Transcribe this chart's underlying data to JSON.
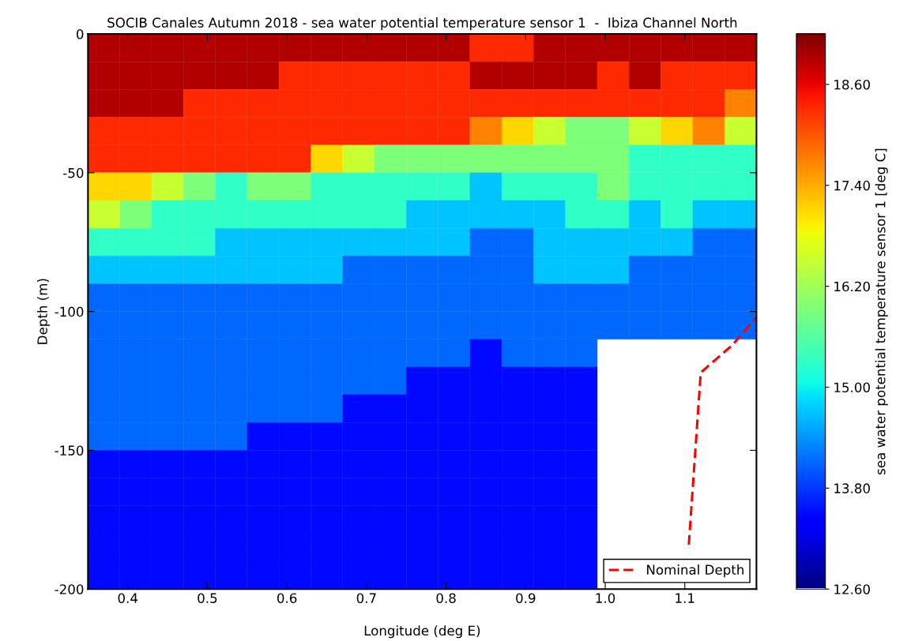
{
  "chart_data": {
    "type": "heatmap",
    "title": "SOCIB Canales Autumn 2018 - sea water potential temperature sensor 1  -  Ibiza Channel North",
    "xlabel": "Longitude (deg E)",
    "ylabel": "Depth (m)",
    "clabel": "sea water potential temperature sensor 1 [deg C]",
    "x": [
      0.37,
      0.41,
      0.45,
      0.49,
      0.53,
      0.57,
      0.61,
      0.65,
      0.69,
      0.73,
      0.77,
      0.81,
      0.85,
      0.89,
      0.93,
      0.97,
      1.01,
      1.05,
      1.09,
      1.13,
      1.17
    ],
    "cells": [
      [
        18.9,
        18.9,
        18.9,
        18.9,
        18.9,
        18.9,
        18.9,
        18.9,
        18.9,
        18.9,
        18.9,
        18.9,
        18.3,
        18.3,
        18.9,
        18.9,
        18.9,
        18.9,
        18.9,
        18.9,
        18.9
      ],
      [
        18.9,
        18.9,
        18.9,
        18.9,
        18.9,
        18.9,
        18.3,
        18.3,
        18.3,
        18.3,
        18.3,
        18.3,
        18.9,
        18.9,
        18.9,
        18.9,
        18.3,
        18.9,
        18.3,
        18.3,
        18.3
      ],
      [
        18.9,
        18.9,
        18.9,
        18.3,
        18.3,
        18.3,
        18.3,
        18.3,
        18.3,
        18.3,
        18.3,
        18.3,
        18.3,
        18.3,
        18.3,
        18.3,
        18.3,
        18.3,
        18.3,
        18.3,
        17.7
      ],
      [
        18.3,
        18.3,
        18.3,
        18.3,
        18.3,
        18.3,
        18.3,
        18.3,
        18.3,
        18.3,
        18.3,
        18.3,
        17.7,
        17.1,
        16.5,
        15.9,
        15.9,
        16.5,
        17.1,
        17.7,
        16.5
      ],
      [
        18.3,
        18.3,
        18.3,
        18.3,
        18.3,
        18.3,
        18.3,
        17.1,
        16.5,
        15.9,
        15.9,
        15.9,
        15.9,
        15.9,
        15.9,
        15.9,
        15.9,
        15.3,
        15.3,
        15.3,
        15.3
      ],
      [
        17.1,
        17.1,
        16.5,
        15.9,
        15.3,
        15.9,
        15.9,
        15.3,
        15.3,
        15.3,
        15.3,
        15.3,
        14.7,
        15.3,
        15.3,
        15.3,
        15.9,
        15.3,
        15.3,
        15.3,
        15.3
      ],
      [
        16.5,
        15.9,
        15.3,
        15.3,
        15.3,
        15.3,
        15.3,
        15.3,
        15.3,
        15.3,
        14.7,
        14.7,
        14.7,
        14.7,
        14.7,
        15.3,
        15.3,
        14.7,
        15.3,
        14.7,
        14.7
      ],
      [
        15.3,
        15.3,
        15.3,
        15.3,
        14.7,
        14.7,
        14.7,
        14.7,
        14.7,
        14.7,
        14.7,
        14.7,
        14.1,
        14.1,
        14.7,
        14.7,
        14.7,
        14.7,
        14.7,
        14.1,
        14.1
      ],
      [
        14.7,
        14.7,
        14.7,
        14.7,
        14.7,
        14.7,
        14.7,
        14.7,
        14.1,
        14.1,
        14.1,
        14.1,
        14.1,
        14.1,
        14.7,
        14.7,
        14.7,
        14.1,
        14.1,
        14.1,
        14.1
      ],
      [
        14.1,
        14.1,
        14.1,
        14.1,
        14.1,
        14.1,
        14.1,
        14.1,
        14.1,
        14.1,
        14.1,
        14.1,
        14.1,
        14.1,
        14.1,
        14.1,
        14.1,
        14.1,
        14.1,
        14.1,
        14.1
      ],
      [
        14.1,
        14.1,
        14.1,
        14.1,
        14.1,
        14.1,
        14.1,
        14.1,
        14.1,
        14.1,
        14.1,
        14.1,
        14.1,
        14.1,
        14.1,
        14.1,
        14.1,
        14.1,
        14.1,
        14.1,
        14.1
      ],
      [
        14.1,
        14.1,
        14.1,
        14.1,
        14.1,
        14.1,
        14.1,
        14.1,
        14.1,
        14.1,
        14.1,
        14.1,
        13.5,
        14.1,
        14.1,
        14.1,
        null,
        null,
        null,
        null,
        null
      ],
      [
        14.1,
        14.1,
        14.1,
        14.1,
        14.1,
        14.1,
        14.1,
        14.1,
        14.1,
        14.1,
        13.5,
        13.5,
        13.5,
        13.5,
        13.5,
        13.5,
        null,
        null,
        null,
        null,
        null
      ],
      [
        14.1,
        14.1,
        14.1,
        14.1,
        14.1,
        14.1,
        14.1,
        14.1,
        13.5,
        13.5,
        13.5,
        13.5,
        13.5,
        13.5,
        13.5,
        13.5,
        null,
        null,
        null,
        null,
        null
      ],
      [
        14.1,
        14.1,
        14.1,
        14.1,
        14.1,
        13.5,
        13.5,
        13.5,
        13.5,
        13.5,
        13.5,
        13.5,
        13.5,
        13.5,
        13.5,
        13.5,
        null,
        null,
        null,
        null,
        null
      ],
      [
        13.5,
        13.5,
        13.5,
        13.5,
        13.5,
        13.5,
        13.5,
        13.5,
        13.5,
        13.5,
        13.5,
        13.5,
        13.5,
        13.5,
        13.5,
        13.5,
        null,
        null,
        null,
        null,
        null
      ],
      [
        13.5,
        13.5,
        13.5,
        13.5,
        13.5,
        13.5,
        13.5,
        13.5,
        13.5,
        13.5,
        13.5,
        13.5,
        13.5,
        13.5,
        13.5,
        13.5,
        null,
        null,
        null,
        null,
        null
      ],
      [
        13.5,
        13.5,
        13.5,
        13.5,
        13.5,
        13.5,
        13.5,
        13.5,
        13.5,
        13.5,
        13.5,
        13.5,
        13.5,
        13.5,
        13.5,
        13.5,
        null,
        null,
        null,
        null,
        null
      ],
      [
        13.5,
        13.5,
        13.5,
        13.5,
        13.5,
        13.5,
        13.5,
        13.5,
        13.5,
        13.5,
        13.5,
        13.5,
        13.5,
        13.5,
        13.5,
        13.5,
        null,
        null,
        null,
        null,
        null
      ],
      [
        13.5,
        13.5,
        13.5,
        13.5,
        13.5,
        13.5,
        13.5,
        13.5,
        13.5,
        13.5,
        13.5,
        13.5,
        13.5,
        13.5,
        13.5,
        13.5,
        null,
        null,
        null,
        null,
        null
      ]
    ],
    "clim": [
      12.6,
      19.2
    ],
    "cticks": [
      {
        "value": 12.6,
        "label": "12.60"
      },
      {
        "value": 13.8,
        "label": "13.80"
      },
      {
        "value": 15.0,
        "label": "15.00"
      },
      {
        "value": 16.2,
        "label": "16.20"
      },
      {
        "value": 17.4,
        "label": "17.40"
      },
      {
        "value": 18.6,
        "label": "18.60"
      }
    ],
    "xlim": [
      0.35,
      1.19
    ],
    "xticks": [
      {
        "value": 0.4,
        "label": "0.4"
      },
      {
        "value": 0.5,
        "label": "0.5"
      },
      {
        "value": 0.6,
        "label": "0.6"
      },
      {
        "value": 0.7,
        "label": "0.7"
      },
      {
        "value": 0.8,
        "label": "0.8"
      },
      {
        "value": 0.9,
        "label": "0.9"
      },
      {
        "value": 1.0,
        "label": "1.0"
      },
      {
        "value": 1.1,
        "label": "1.1"
      }
    ],
    "ylim": [
      -200,
      0
    ],
    "yticks": [
      -200,
      -150,
      -100,
      -50,
      0
    ],
    "series": [
      {
        "type": "line",
        "name": "Nominal Depth",
        "color": "#ff0000",
        "line_style": "dashed",
        "x": [
          1.105,
          1.12,
          1.16,
          1.19
        ],
        "values": [
          -184,
          -122,
          -112,
          -102
        ]
      }
    ],
    "legend": "bottom right",
    "grid": false
  }
}
